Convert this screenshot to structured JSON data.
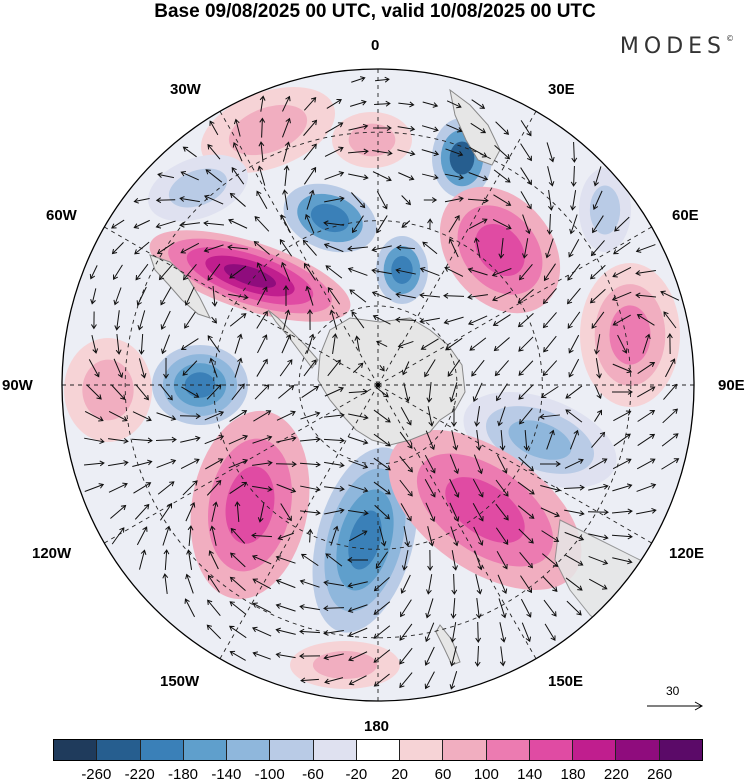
{
  "title": "Base 09/08/2025 00 UTC, valid 10/08/2025 00 UTC",
  "brand": "MODES",
  "brand_mark": "©",
  "map": {
    "projection": "south-polar-stereographic",
    "labels": {
      "lon_0": "0",
      "lon_30e": "30E",
      "lon_60e": "60E",
      "lon_90e": "90E",
      "lon_120e": "120E",
      "lon_150e": "150E",
      "lon_180": "180",
      "lon_150w": "150W",
      "lon_120w": "120W",
      "lon_90w": "90W",
      "lon_60w": "60W",
      "lon_30w": "30W"
    },
    "reference_vector": "30",
    "colors": {
      "land": "#e8e8e8",
      "coast": "#888888",
      "grid": "#222222",
      "vector": "#111111"
    }
  },
  "colorbar": {
    "ticks": [
      "-260",
      "-220",
      "-180",
      "-140",
      "-100",
      "-60",
      "-20",
      "20",
      "60",
      "100",
      "140",
      "180",
      "220",
      "260"
    ],
    "colors": [
      "#1f3b5c",
      "#265e8f",
      "#3a80b8",
      "#5f9fcc",
      "#8fb7dc",
      "#b9cbe6",
      "#dfe1f0",
      "#ffffff",
      "#f6d3d6",
      "#f1aec0",
      "#ec7bb1",
      "#e04ba3",
      "#c01e8e",
      "#8f0c7d",
      "#5b0a68"
    ]
  }
}
